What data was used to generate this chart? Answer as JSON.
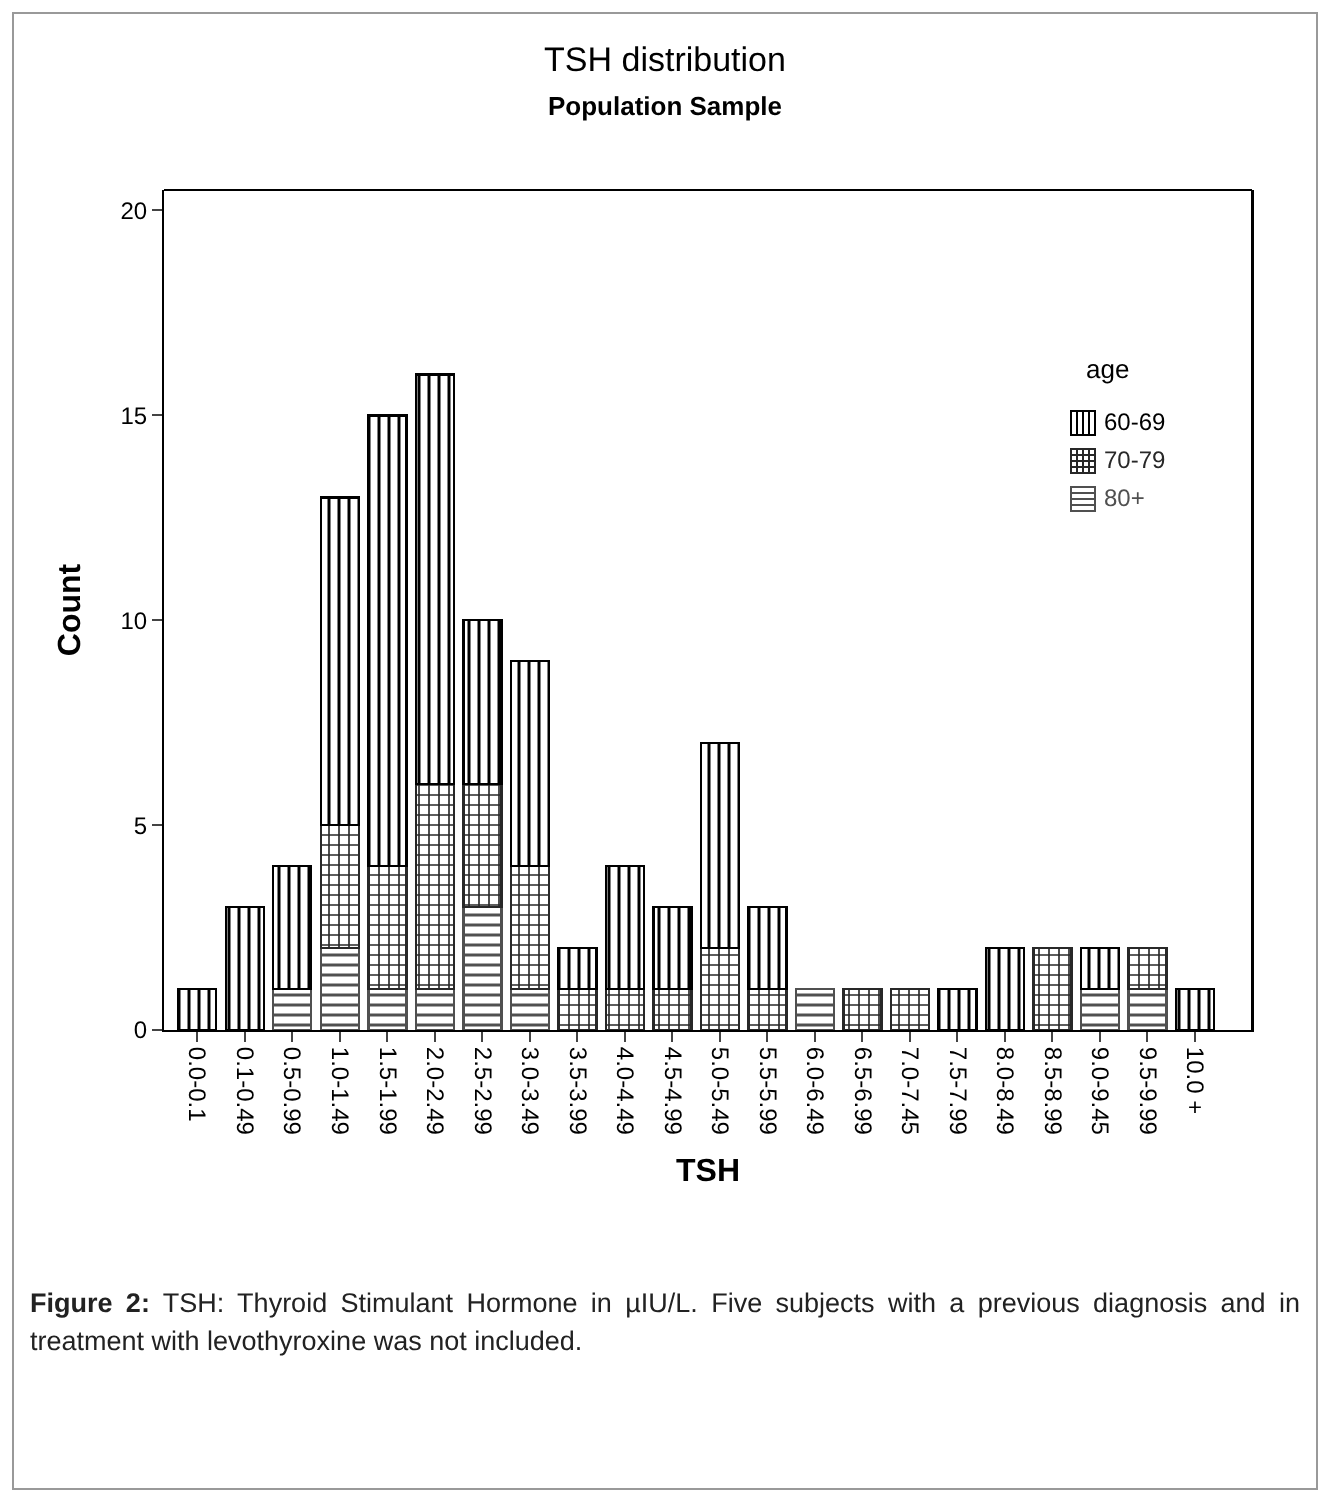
{
  "chart_data": {
    "type": "bar",
    "title": "TSH distribution",
    "subtitle": "Population Sample",
    "xlabel": "TSH",
    "ylabel": "Count",
    "legend_title": "age",
    "categories": [
      "0.0-0.1",
      "0.1-0.49",
      "0.5-0.99",
      "1.0-1.49",
      "1.5-1.99",
      "2.0-2.49",
      "2.5-2.99",
      "3.0-3.49",
      "3.5-3.99",
      "4.0-4.49",
      "4.5-4.99",
      "5.0-5.49",
      "5.5-5.99",
      "6.0-6.49",
      "6.5-6.99",
      "7.0-7.45",
      "7.5-7.99",
      "8.0-8.49",
      "8.5-8.99",
      "9.0-9.45",
      "9.5-9.99",
      "10.0 +"
    ],
    "series": [
      {
        "name": "80+",
        "color": "#505050",
        "values": [
          0,
          0,
          1,
          2,
          1,
          1,
          3,
          1,
          0,
          0,
          0,
          0,
          0,
          1,
          0,
          0,
          0,
          0,
          0,
          1,
          1,
          0
        ]
      },
      {
        "name": "70-79",
        "color": "#282828",
        "values": [
          0,
          0,
          0,
          3,
          3,
          5,
          3,
          3,
          1,
          1,
          1,
          2,
          1,
          0,
          1,
          1,
          0,
          0,
          2,
          0,
          1,
          0
        ]
      },
      {
        "name": "60-69",
        "color": "#000000",
        "values": [
          1,
          3,
          3,
          8,
          11,
          10,
          4,
          5,
          1,
          3,
          2,
          5,
          2,
          0,
          0,
          0,
          1,
          2,
          0,
          1,
          0,
          1
        ]
      }
    ],
    "stacked": true,
    "ylim": [
      0,
      20.5
    ],
    "yticks": [
      0,
      5,
      10,
      15,
      20
    ],
    "grid": false,
    "legend": "top right",
    "annotations": [
      "Figure 2: TSH: Thyroid Stimulant Hormone in µIU/L. Five subjects with a previous diagnosis and in treatment with levothyroxine was not included."
    ]
  }
}
